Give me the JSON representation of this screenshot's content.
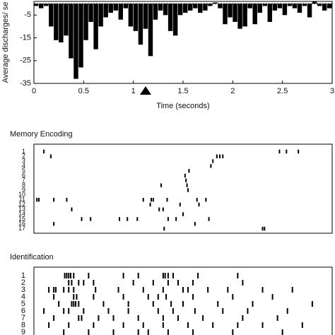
{
  "chart_data": [
    {
      "type": "histogram",
      "xlabel": "Time (seconds)",
      "ylabel": "Average discharges/ se",
      "bins": [
        0,
        0.05,
        0.1,
        0.15,
        0.2,
        0.25,
        0.3,
        0.35,
        0.4,
        0.45,
        0.5,
        0.55,
        0.6,
        0.65,
        0.7,
        0.75,
        0.8,
        0.85,
        0.9,
        0.95,
        1,
        1.05,
        1.1,
        1.15,
        1.2,
        1.25,
        1.3,
        1.35,
        1.4,
        1.45,
        1.5,
        1.55,
        1.6,
        1.65,
        1.7,
        1.75,
        1.8,
        1.85,
        1.9,
        1.95,
        2,
        2.05,
        2.1,
        2.15,
        2.2,
        2.25,
        2.3,
        2.35,
        2.4,
        2.45,
        2.5,
        2.55,
        2.6,
        2.65,
        2.7,
        2.75,
        2.8,
        2.85,
        2.9,
        2.95,
        3
      ],
      "values": [
        -1,
        -2,
        -1,
        -10,
        -16,
        -17,
        -14,
        -24,
        -33,
        -28,
        -16,
        -8,
        -20,
        -10,
        -6,
        -4,
        -3,
        -7,
        -2,
        -10,
        -12,
        -18,
        -11,
        -23,
        -7,
        -3,
        -5,
        -12,
        -14,
        -5,
        -4,
        -3,
        -2,
        -4,
        -3,
        -1,
        0.5,
        -2,
        -9,
        -6,
        -8,
        -11,
        -10,
        -2,
        -9,
        -4,
        -1,
        -8,
        -3,
        -2,
        -5,
        -1,
        -2,
        -4,
        -1,
        -6,
        1,
        -1,
        -3,
        -2
      ],
      "color": "#000000",
      "xlim": [
        0,
        3
      ],
      "ylim": [
        -35,
        1
      ],
      "xticks": [
        0,
        0.5,
        1,
        1.5,
        2,
        2.5,
        3
      ],
      "yticks": [
        -5,
        -15,
        -25,
        -35
      ]
    },
    {
      "type": "raster",
      "title": "Memory Encoding",
      "xlim": [
        0,
        3
      ],
      "rows": [
        1,
        2,
        3,
        4,
        5,
        6,
        7,
        8,
        9,
        10,
        11,
        12,
        13,
        14,
        15,
        16,
        17
      ],
      "spikes": [
        [
          0.1,
          2.47,
          2.54,
          2.66
        ],
        [
          0.17,
          1.84,
          1.87,
          1.9
        ],
        [
          1.8
        ],
        [
          1.78
        ],
        [
          1.56
        ],
        [
          1.52
        ],
        [
          1.53
        ],
        [
          1.28,
          1.54
        ],
        [
          1.55
        ],
        [],
        [
          0.03,
          0.05,
          0.2,
          0.33,
          1.1,
          1.18,
          1.2,
          1.34,
          1.64,
          1.73
        ],
        [
          1.17,
          1.47,
          1.66
        ],
        [
          0.38,
          1.26,
          1.3
        ],
        [
          1.5
        ],
        [
          0.48,
          0.57,
          0.86,
          0.94,
          1.04,
          1.35,
          1.43,
          1.76
        ],
        [
          0.2,
          1.62
        ],
        [
          1.31,
          2.3,
          2.32
        ]
      ]
    },
    {
      "type": "raster",
      "title": "Identification",
      "xlim": [
        0,
        3
      ],
      "rows": [
        1,
        2,
        3,
        4,
        5,
        6,
        7,
        8,
        9
      ],
      "spikes": [
        [
          0.31,
          0.33,
          0.35,
          0.37,
          0.4,
          0.55,
          0.9,
          1.05,
          1.3,
          1.32,
          1.35,
          1.4,
          1.65,
          2.05
        ],
        [
          0.35,
          0.38,
          0.45,
          0.5,
          0.6,
          1.0,
          1.2,
          1.35,
          1.45,
          1.6,
          2.1
        ],
        [
          0.15,
          0.2,
          0.22,
          0.3,
          0.35,
          0.4,
          0.62,
          0.85,
          1.1,
          1.3,
          1.5,
          1.55,
          1.75,
          1.95,
          2.3,
          2.6
        ],
        [
          0.2,
          0.4,
          0.43,
          0.6,
          0.9,
          1.15,
          1.25,
          1.33,
          1.6,
          2.0,
          2.4
        ],
        [
          0.25,
          0.38,
          0.4,
          0.42,
          0.45,
          0.7,
          0.95,
          1.2,
          1.38,
          1.5,
          1.85,
          2.2,
          2.8
        ],
        [
          0.1,
          0.3,
          0.35,
          0.5,
          0.75,
          0.95,
          1.25,
          1.4,
          1.62,
          1.9,
          2.15,
          2.55
        ],
        [
          0.2,
          0.45,
          0.48,
          0.65,
          0.8,
          1.05,
          1.3,
          1.45,
          1.7,
          2.1,
          2.45
        ],
        [
          0.15,
          0.35,
          0.6,
          0.9,
          1.1,
          1.3,
          1.55,
          1.8,
          2.05,
          2.3,
          2.7
        ],
        [
          0.3,
          0.55,
          0.8,
          1.05,
          1.15,
          1.35,
          1.6,
          2.0,
          2.5
        ]
      ]
    }
  ]
}
